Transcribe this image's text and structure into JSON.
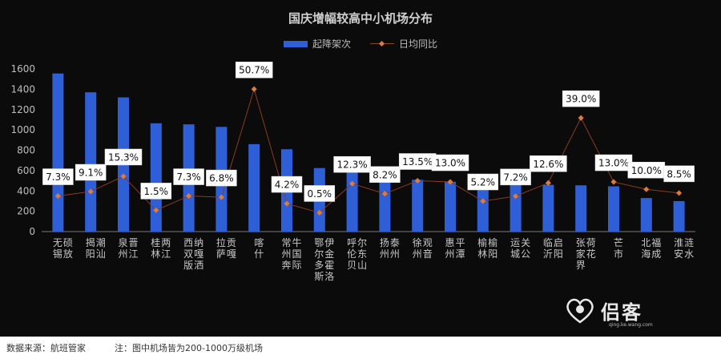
{
  "colors": {
    "bar": "#2f5fd6",
    "line": "#8a3a1e",
    "marker": "#e07a3a",
    "label_bg": "#ffffff"
  },
  "legend": {
    "bar_label": "起降架次",
    "line_label": "日均同比"
  },
  "footer": {
    "source": "数据来源：航班管家",
    "note": "注：图中机场皆为200-1000万级机场"
  },
  "watermark": {
    "text": "侣客",
    "sub": "qing.ke.wang.com",
    "icon": "heart-logo-icon"
  },
  "chart_data": {
    "type": "bar",
    "title": "国庆增幅较高中小机场分布",
    "categories": [
      "无锡硕放",
      "揭阳潮汕",
      "泉州晋江",
      "桂林两江",
      "西双版纳嘎洒",
      "拉萨贡嘎",
      "喀什",
      "常州奔牛国际",
      "鄂尔多斯伊金霍洛",
      "呼伦贝尔东山",
      "扬州泰州",
      "徐州观音",
      "惠州平潭",
      "榆林榆阳",
      "运城关公",
      "临沂启阳",
      "张家界荷花",
      "芒市",
      "北海福成",
      "淮安涟水"
    ],
    "ylim": [
      0,
      1600
    ],
    "yticks": [
      0,
      200,
      400,
      600,
      800,
      1000,
      1200,
      1400,
      1600
    ],
    "grid": false,
    "legend_position": "top",
    "series": [
      {
        "name": "起降架次",
        "type": "bar",
        "values": [
          1555,
          1370,
          1320,
          1065,
          1055,
          1030,
          860,
          810,
          625,
          610,
          575,
          510,
          490,
          480,
          470,
          460,
          455,
          445,
          330,
          300
        ]
      },
      {
        "name": "日均同比",
        "type": "line",
        "values": [
          7.3,
          9.1,
          15.3,
          1.5,
          7.3,
          6.8,
          50.7,
          4.2,
          0.5,
          12.3,
          8.2,
          13.5,
          13.0,
          5.2,
          7.2,
          12.6,
          39.0,
          13.0,
          10.0,
          8.5
        ],
        "labels": [
          "7.3%",
          "9.1%",
          "15.3%",
          "1.5%",
          "7.3%",
          "6.8%",
          "50.7%",
          "4.2%",
          "0.5%",
          "12.3%",
          "8.2%",
          "13.5%",
          "13.0%",
          "5.2%",
          "7.2%",
          "12.6%",
          "39.0%",
          "13.0%",
          "10.0%",
          "8.5%"
        ]
      }
    ]
  }
}
